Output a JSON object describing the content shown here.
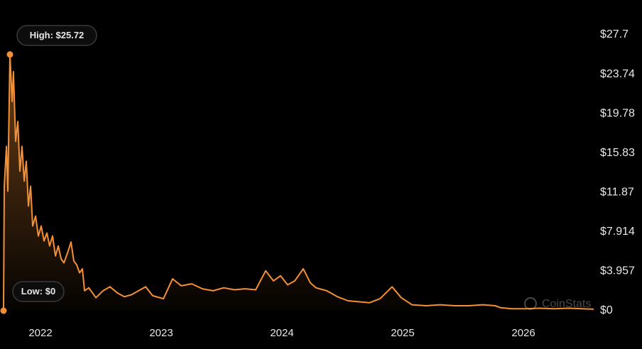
{
  "chart_data": {
    "type": "line",
    "x": [
      2021.694,
      2021.7,
      2021.718,
      2021.729,
      2021.747,
      2021.765,
      2021.776,
      2021.794,
      2021.812,
      2021.829,
      2021.847,
      2021.865,
      2021.882,
      2021.9,
      2021.918,
      2021.935,
      2021.959,
      2021.982,
      2022.006,
      2022.029,
      2022.053,
      2022.076,
      2022.1,
      2022.124,
      2022.147,
      2022.171,
      2022.194,
      2022.224,
      2022.253,
      2022.276,
      2022.3,
      2022.324,
      2022.347,
      2022.365,
      2022.4,
      2022.459,
      2022.518,
      2022.576,
      2022.635,
      2022.694,
      2022.753,
      2022.812,
      2022.871,
      2022.929,
      2023.018,
      2023.094,
      2023.165,
      2023.253,
      2023.341,
      2023.429,
      2023.518,
      2023.606,
      2023.694,
      2023.782,
      2023.865,
      2023.929,
      2023.988,
      2024.047,
      2024.106,
      2024.176,
      2024.235,
      2024.282,
      2024.371,
      2024.459,
      2024.547,
      2024.635,
      2024.724,
      2024.812,
      2024.912,
      2024.988,
      2025.076,
      2025.194,
      2025.312,
      2025.429,
      2025.547,
      2025.665,
      2025.765,
      2025.812,
      2025.9,
      2026.018,
      2026.135,
      2026.253,
      2026.371,
      2026.488,
      2026.582
    ],
    "values": [
      0,
      12.5,
      16.5,
      12,
      25.72,
      21,
      24,
      17,
      19,
      14,
      16.5,
      13,
      15,
      10.5,
      12.5,
      8.5,
      9.5,
      7.5,
      8.5,
      7,
      7.8,
      6.5,
      7.5,
      5.5,
      6.5,
      5.2,
      4.8,
      5.8,
      6.9,
      5.0,
      4.6,
      3.8,
      4.2,
      2.0,
      2.3,
      1.3,
      2.0,
      2.4,
      1.8,
      1.4,
      1.6,
      2.0,
      2.4,
      1.5,
      1.2,
      3.2,
      2.5,
      2.7,
      2.2,
      2.0,
      2.3,
      2.1,
      2.2,
      2.1,
      4.0,
      3.0,
      3.5,
      2.6,
      3.0,
      4.2,
      2.8,
      2.3,
      2.0,
      1.4,
      1.0,
      0.9,
      0.8,
      1.2,
      2.4,
      1.3,
      0.6,
      0.5,
      0.6,
      0.5,
      0.5,
      0.6,
      0.5,
      0.3,
      0.2,
      0.2,
      0.25,
      0.2,
      0.25,
      0.2,
      0.15
    ],
    "color": "#f39035",
    "xlim": [
      2021.694,
      2026.582
    ],
    "xticks": [
      2022,
      2023,
      2024,
      2025,
      2026
    ],
    "ylim": [
      0,
      27.7
    ],
    "yticks": [
      {
        "value": 0,
        "label": "$0"
      },
      {
        "value": 3.957,
        "label": "$3.957"
      },
      {
        "value": 7.914,
        "label": "$7.914"
      },
      {
        "value": 11.87,
        "label": "$11.87"
      },
      {
        "value": 15.83,
        "label": "$15.83"
      },
      {
        "value": 19.78,
        "label": "$19.78"
      },
      {
        "value": 23.74,
        "label": "$23.74"
      },
      {
        "value": 27.7,
        "label": "$27.7"
      }
    ],
    "high": {
      "x": 2021.747,
      "value": 25.72,
      "label": "High: $25.72"
    },
    "low": {
      "x": 2021.694,
      "value": 0,
      "label": "Low: $0"
    },
    "watermark": "CoinStats"
  }
}
